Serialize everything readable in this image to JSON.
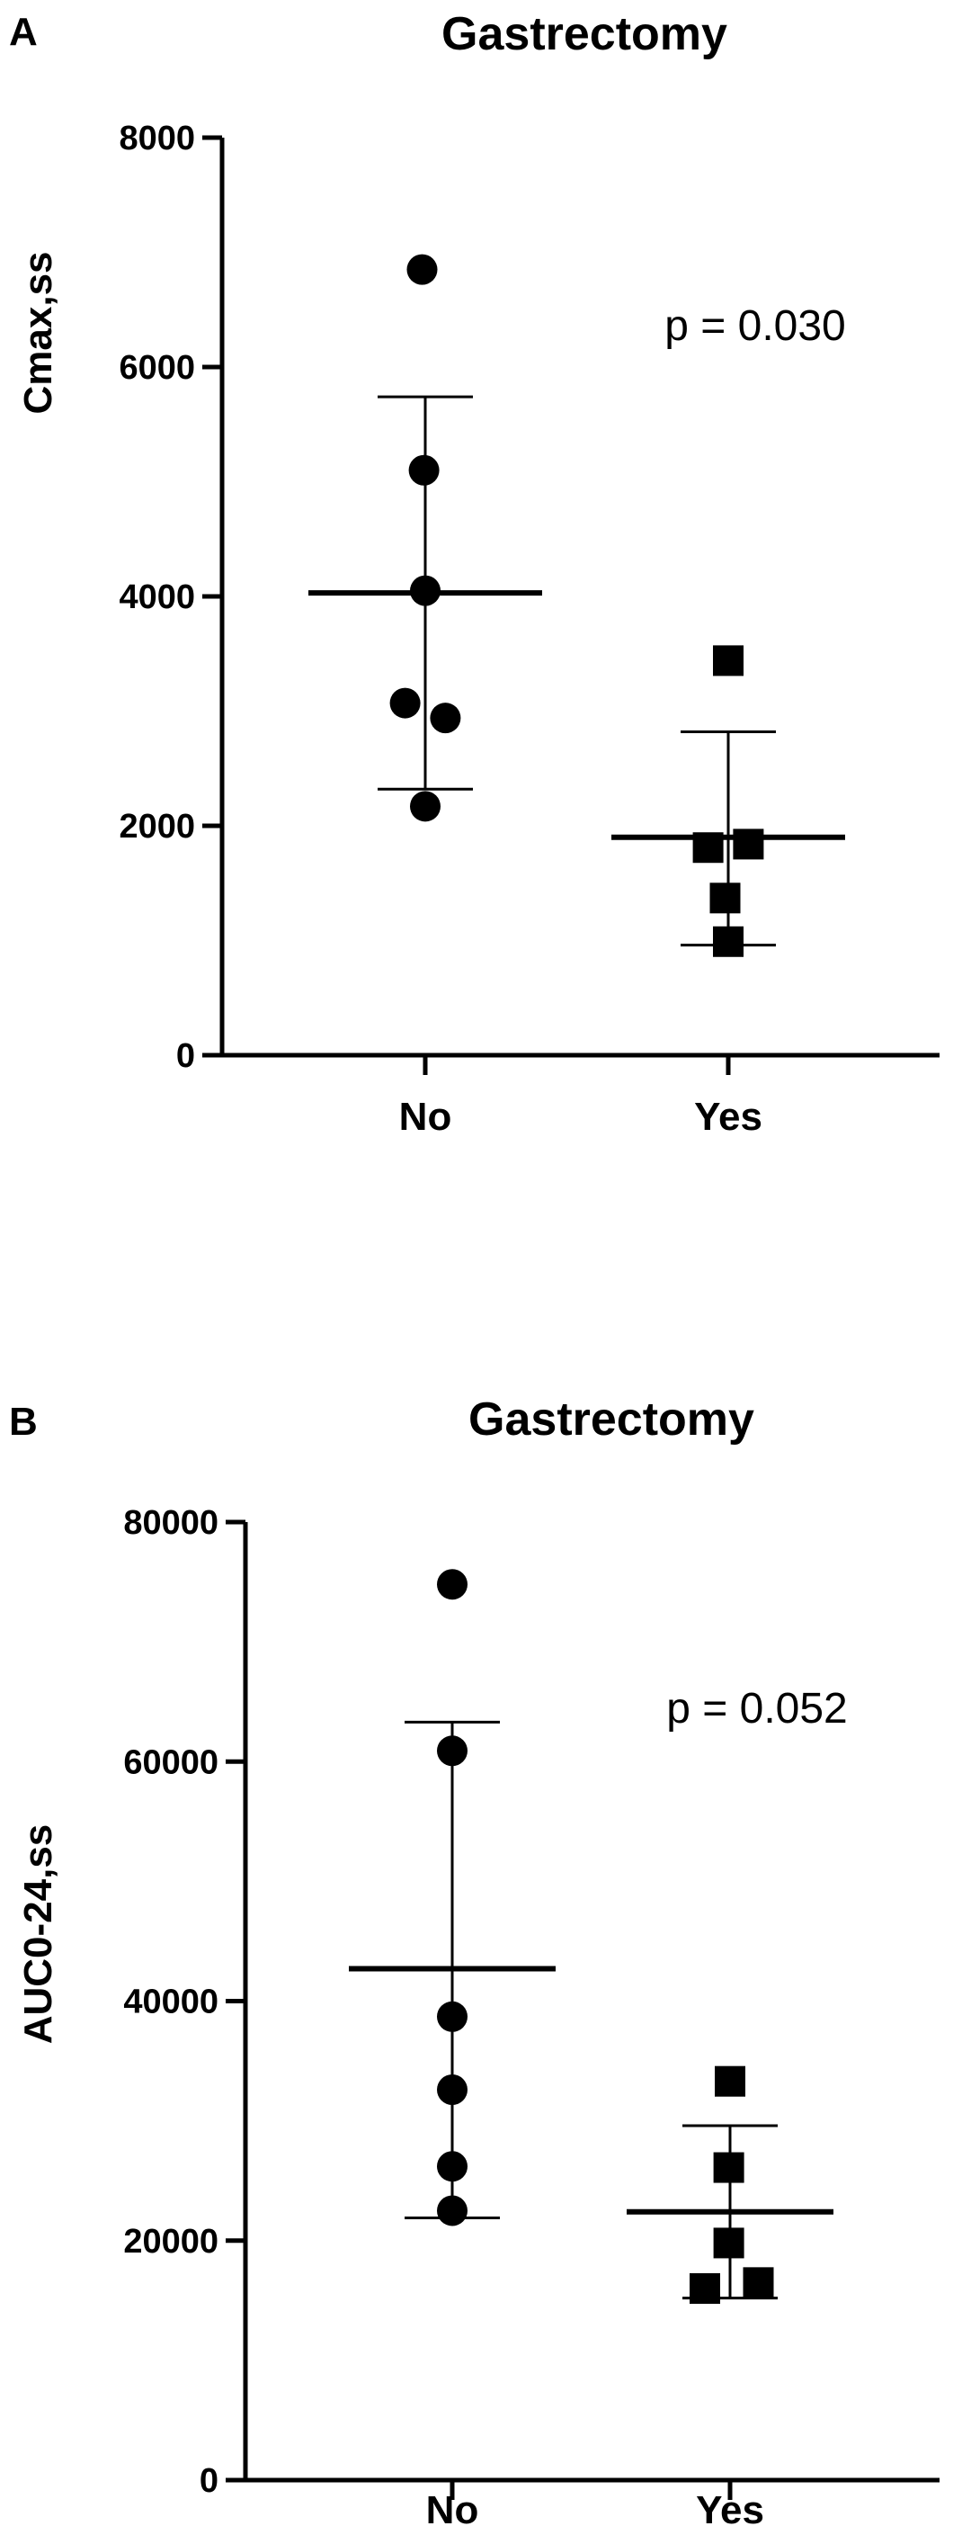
{
  "chart_data": [
    {
      "type": "scatter",
      "panel": "A",
      "title": "Gastrectomy",
      "xlabel": "",
      "ylabel": "Cmax,ss",
      "ylim": [
        0,
        8000
      ],
      "yticks": [
        0,
        2000,
        4000,
        6000,
        8000
      ],
      "categories": [
        "No",
        "Yes"
      ],
      "annotation": "p = 0.030",
      "groups": [
        {
          "category": "No",
          "marker": "circle",
          "points": [
            {
              "y": 6850,
              "offset": -0.05
            },
            {
              "y": 5100,
              "offset": -0.02
            },
            {
              "y": 4050,
              "offset": 0.0
            },
            {
              "y": 3070,
              "offset": -0.32
            },
            {
              "y": 2940,
              "offset": 0.32
            },
            {
              "y": 2170,
              "offset": 0.0
            }
          ],
          "mean": 4030,
          "sd_upper": 5740,
          "sd_lower": 2320
        },
        {
          "category": "Yes",
          "marker": "square",
          "points": [
            {
              "y": 3440,
              "offset": 0.0
            },
            {
              "y": 1840,
              "offset": 0.32
            },
            {
              "y": 1810,
              "offset": -0.32
            },
            {
              "y": 1370,
              "offset": -0.05
            },
            {
              "y": 990,
              "offset": 0.0
            }
          ],
          "mean": 1900,
          "sd_upper": 2820,
          "sd_lower": 960
        }
      ]
    },
    {
      "type": "scatter",
      "panel": "B",
      "title": "Gastrectomy",
      "xlabel": "",
      "ylabel": "AUC0-24,ss",
      "ylim": [
        0,
        80000
      ],
      "yticks": [
        0,
        20000,
        40000,
        60000,
        80000
      ],
      "categories": [
        "No",
        "Yes"
      ],
      "annotation": "p = 0.052",
      "groups": [
        {
          "category": "No",
          "marker": "circle",
          "points": [
            {
              "y": 74800,
              "offset": 0.0
            },
            {
              "y": 60900,
              "offset": 0.0
            },
            {
              "y": 38700,
              "offset": 0.0
            },
            {
              "y": 32600,
              "offset": 0.0
            },
            {
              "y": 26200,
              "offset": 0.0
            },
            {
              "y": 22500,
              "offset": 0.0
            }
          ],
          "mean": 42700,
          "sd_upper": 63300,
          "sd_lower": 21900
        },
        {
          "category": "Yes",
          "marker": "square",
          "points": [
            {
              "y": 33300,
              "offset": 0.0
            },
            {
              "y": 26100,
              "offset": -0.02
            },
            {
              "y": 19800,
              "offset": -0.02
            },
            {
              "y": 16500,
              "offset": 0.45
            },
            {
              "y": 16000,
              "offset": -0.4
            }
          ],
          "mean": 22400,
          "sd_upper": 29600,
          "sd_lower": 15200
        }
      ]
    }
  ]
}
